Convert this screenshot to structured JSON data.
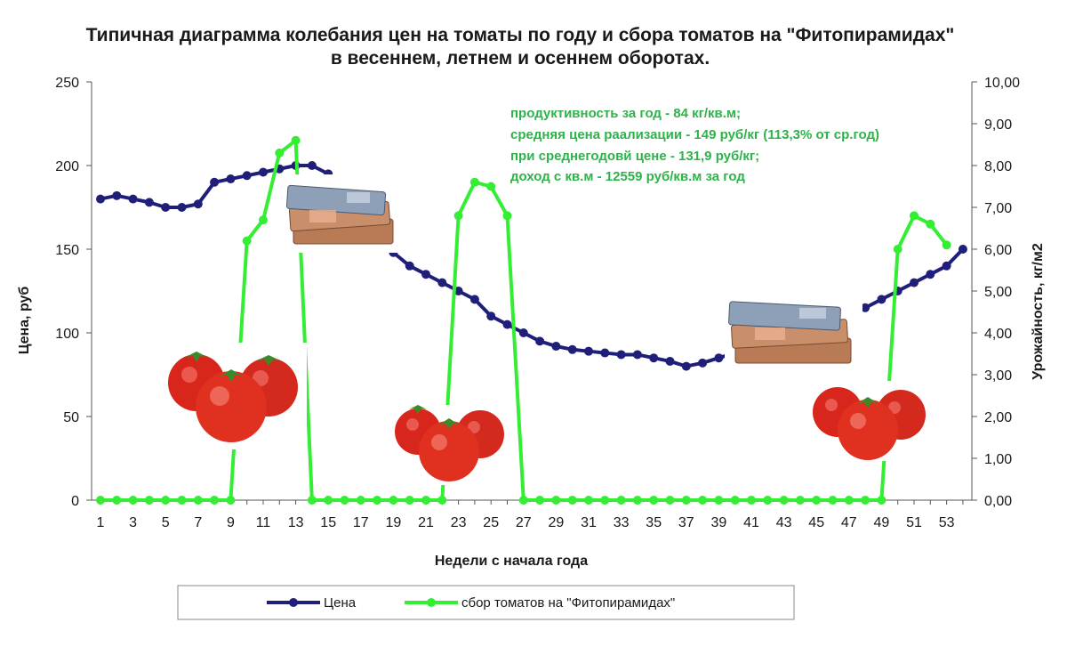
{
  "chart_data": {
    "type": "line",
    "title": "Типичная диаграмма колебания цен на томаты по году и сбора томатов на \"Фитопирамидах\"",
    "subtitle": "в весеннем, летнем и осеннем оборотах.",
    "xlabel": "Недели с начала года",
    "ylabel_left": "Цена, руб",
    "ylabel_right": "Урожайность, кг/м2",
    "x": [
      1,
      2,
      3,
      4,
      5,
      6,
      7,
      8,
      9,
      10,
      11,
      12,
      13,
      14,
      15,
      16,
      17,
      18,
      19,
      20,
      21,
      22,
      23,
      24,
      25,
      26,
      27,
      28,
      29,
      30,
      31,
      32,
      33,
      34,
      35,
      36,
      37,
      38,
      39,
      40,
      41,
      42,
      43,
      44,
      45,
      46,
      47,
      48,
      49,
      50,
      51,
      52,
      53,
      54
    ],
    "x_tick_labels": [
      "1",
      "3",
      "5",
      "7",
      "9",
      "11",
      "13",
      "15",
      "17",
      "19",
      "21",
      "23",
      "25",
      "27",
      "29",
      "31",
      "33",
      "35",
      "37",
      "39",
      "41",
      "43",
      "45",
      "47",
      "49",
      "51",
      "53"
    ],
    "ylim_left": [
      0,
      250
    ],
    "y_left_ticks": [
      "0",
      "50",
      "100",
      "150",
      "200",
      "250"
    ],
    "ylim_right": [
      0,
      10
    ],
    "y_right_ticks": [
      "0,00",
      "1,00",
      "2,00",
      "3,00",
      "4,00",
      "5,00",
      "6,00",
      "7,00",
      "8,00",
      "9,00",
      "10,00"
    ],
    "grid": false,
    "legend_position": "bottom",
    "series": [
      {
        "name": "Цена",
        "axis": "left",
        "color": "#1f1f7a",
        "values": [
          180,
          182,
          180,
          178,
          175,
          175,
          177,
          190,
          192,
          194,
          196,
          198,
          200,
          200,
          195,
          180,
          165,
          155,
          148,
          140,
          135,
          130,
          125,
          120,
          110,
          105,
          100,
          95,
          92,
          90,
          89,
          88,
          87,
          87,
          85,
          83,
          80,
          82,
          85,
          88,
          90,
          92,
          95,
          100,
          105,
          110,
          112,
          115,
          120,
          125,
          130,
          135,
          140,
          150
        ]
      },
      {
        "name": "сбор томатов на \"Фитопирамидах\"",
        "axis": "right",
        "color": "#33ee33",
        "values": [
          0,
          0,
          0,
          0,
          0,
          0,
          0,
          0,
          0,
          6.2,
          6.7,
          8.3,
          8.6,
          0,
          0,
          0,
          0,
          0,
          0,
          0,
          0,
          0,
          6.8,
          7.6,
          7.5,
          6.8,
          0,
          0,
          0,
          0,
          0,
          0,
          0,
          0,
          0,
          0,
          0,
          0,
          0,
          0,
          0,
          0,
          0,
          0,
          0,
          0,
          0,
          0,
          0,
          6.0,
          6.8,
          6.6,
          6.1,
          null
        ]
      }
    ],
    "annotations": [
      "продуктивность за год - 84 кг/кв.м;",
      "средняя цена раализации -  149 руб/кг (113,3% от ср.год)",
      "при среднегодовй цене - 131,9 руб/кг;",
      "доход с кв.м - 12559 руб/кв.м за год"
    ],
    "annotation_color": "#2db34a",
    "images": [
      "tomatoes",
      "banknotes"
    ]
  }
}
